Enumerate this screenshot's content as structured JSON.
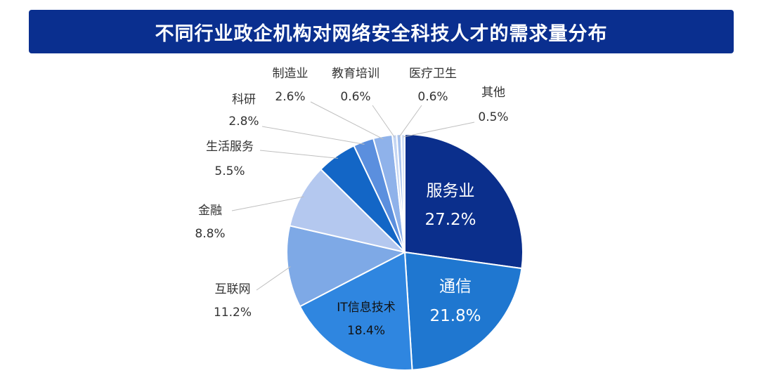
{
  "chart_data": {
    "type": "pie",
    "title": "不同行业政企机构对网络安全科技人才的需求量分布",
    "slices": [
      {
        "label": "服务业",
        "value": 27.2,
        "value_text": "27.2%",
        "color": "#0b2f8c"
      },
      {
        "label": "通信",
        "value": 21.8,
        "value_text": "21.8%",
        "color": "#1f77d0"
      },
      {
        "label": "IT信息技术",
        "value": 18.4,
        "value_text": "18.4%",
        "color": "#2f86e0"
      },
      {
        "label": "互联网",
        "value": 11.2,
        "value_text": "11.2%",
        "color": "#7ea9e6"
      },
      {
        "label": "金融",
        "value": 8.8,
        "value_text": "8.8%",
        "color": "#b4c8ef"
      },
      {
        "label": "生活服务",
        "value": 5.5,
        "value_text": "5.5%",
        "color": "#1366c6"
      },
      {
        "label": "科研",
        "value": 2.8,
        "value_text": "2.8%",
        "color": "#5b8fde"
      },
      {
        "label": "制造业",
        "value": 2.6,
        "value_text": "2.6%",
        "color": "#8fb2ea"
      },
      {
        "label": "教育培训",
        "value": 0.6,
        "value_text": "0.6%",
        "color": "#c5d6f3"
      },
      {
        "label": "医疗卫生",
        "value": 0.6,
        "value_text": "0.6%",
        "color": "#a7c2ee"
      },
      {
        "label": "其他",
        "value": 0.5,
        "value_text": "0.5%",
        "color": "#d3e0f6"
      }
    ]
  }
}
